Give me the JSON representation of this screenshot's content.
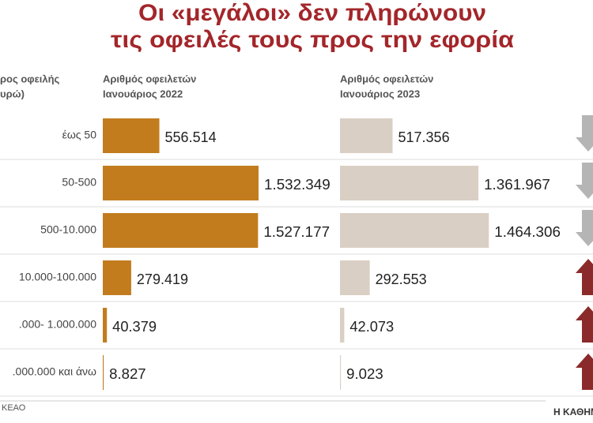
{
  "chart_data": {
    "type": "bar",
    "orientation": "horizontal",
    "title_lines": [
      "Οι «μεγάλοι» δεν πληρώνουν",
      "τις οφειλές τους προς την εφορία"
    ],
    "category_header_lines": [
      "ρος οφειλής",
      "υρώ)"
    ],
    "categories": [
      "έως 50",
      "50-500",
      "500-10.000",
      "10.000-100.000",
      ".000- 1.000.000",
      ".000.000 και άνω"
    ],
    "series": [
      {
        "name_lines": [
          "Αριθμός οφειλετών",
          "Ιανουάριος 2022"
        ],
        "color": "#c27c1e",
        "values": [
          556514,
          1532349,
          1527177,
          279419,
          40379,
          8827
        ],
        "value_labels": [
          "556.514",
          "1.532.349",
          "1.527.177",
          "279.419",
          "40.379",
          "8.827"
        ]
      },
      {
        "name_lines": [
          "Αριθμός οφειλετών",
          "Ιανουάριος 2023"
        ],
        "color": "#dacfc4",
        "values": [
          517356,
          1361967,
          1464306,
          292553,
          42073,
          9023
        ],
        "value_labels": [
          "517.356",
          "1.361.967",
          "1.464.306",
          "292.553",
          "42.073",
          "9.023"
        ]
      }
    ],
    "source": "ΚΕΑΟ",
    "publisher": "Η ΚΑΘΗΜ"
  }
}
